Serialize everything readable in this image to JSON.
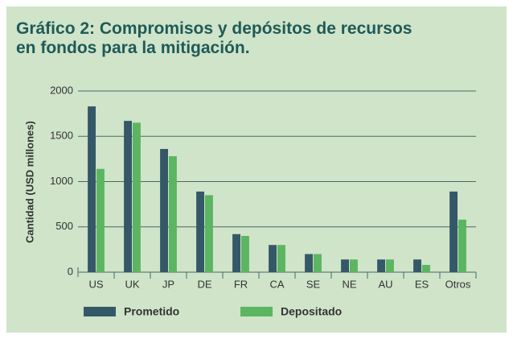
{
  "chart_data": {
    "type": "bar",
    "title": [
      "Gráfico 2: Compromisos y depósitos de recursos",
      "en fondos para la mitigación."
    ],
    "y_label": "Cantidad (USD millones)",
    "categories": [
      "US",
      "UK",
      "JP",
      "DE",
      "FR",
      "CA",
      "SE",
      "NE",
      "AU",
      "ES",
      "Otros"
    ],
    "series": [
      {
        "name": "Prometido",
        "color": "#355868",
        "values": [
          1830,
          1670,
          1360,
          890,
          420,
          300,
          200,
          140,
          140,
          140,
          890
        ]
      },
      {
        "name": "Depositado",
        "color": "#5cb561",
        "values": [
          1140,
          1650,
          1280,
          850,
          400,
          300,
          200,
          140,
          140,
          80,
          580
        ]
      }
    ],
    "ylim": [
      0,
      2000
    ],
    "yticks": [
      0,
      500,
      1000,
      1500,
      2000
    ],
    "grid": true,
    "legend": "bottom"
  }
}
